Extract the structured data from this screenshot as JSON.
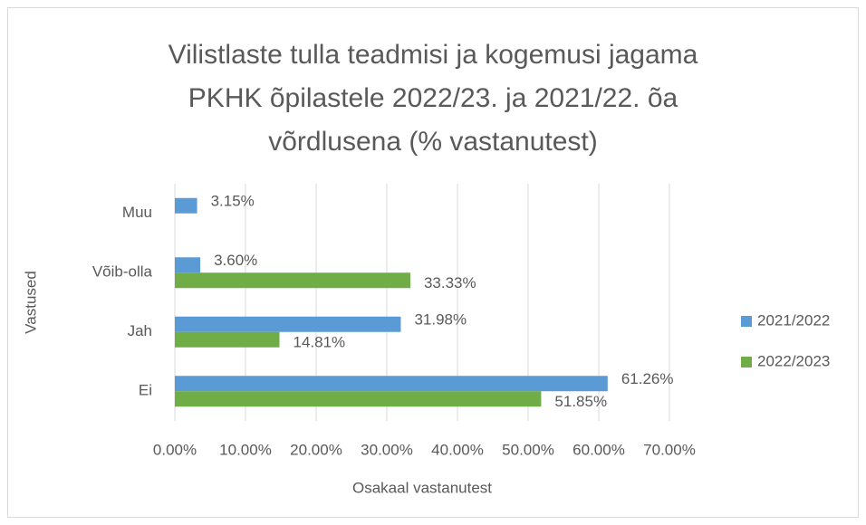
{
  "chart_data": {
    "type": "hbar",
    "title": [
      "Vilistlaste tulla teadmisi ja kogemusi jagama",
      "PKHK õpilastele 2022/23. ja 2021/22. õa",
      "võrdlusena (% vastanutest)"
    ],
    "x_label": "Osakaal vastanutest",
    "y_label": "Vastused",
    "categories": [
      "Ei",
      "Jah",
      "Võib-olla",
      "Muu"
    ],
    "series": [
      {
        "name": "2021/2022",
        "color": "#5b9bd5",
        "values": [
          61.26,
          31.98,
          3.6,
          3.15
        ],
        "value_labels": [
          "61.26%",
          "31.98%",
          "3.60%",
          "3.15%"
        ]
      },
      {
        "name": "2022/2023",
        "color": "#70ad47",
        "values": [
          51.85,
          14.81,
          33.33,
          null
        ],
        "value_labels": [
          "51.85%",
          "14.81%",
          "33.33%",
          null
        ]
      }
    ],
    "xlim": [
      0,
      70
    ],
    "xticks": [
      {
        "value": 0,
        "label": "0.00%"
      },
      {
        "value": 10,
        "label": "10.00%"
      },
      {
        "value": 20,
        "label": "20.00%"
      },
      {
        "value": 30,
        "label": "30.00%"
      },
      {
        "value": 40,
        "label": "40.00%"
      },
      {
        "value": 50,
        "label": "50.00%"
      },
      {
        "value": 60,
        "label": "60.00%"
      },
      {
        "value": 70,
        "label": "70.00%"
      }
    ],
    "grid": true,
    "legend": "right"
  }
}
